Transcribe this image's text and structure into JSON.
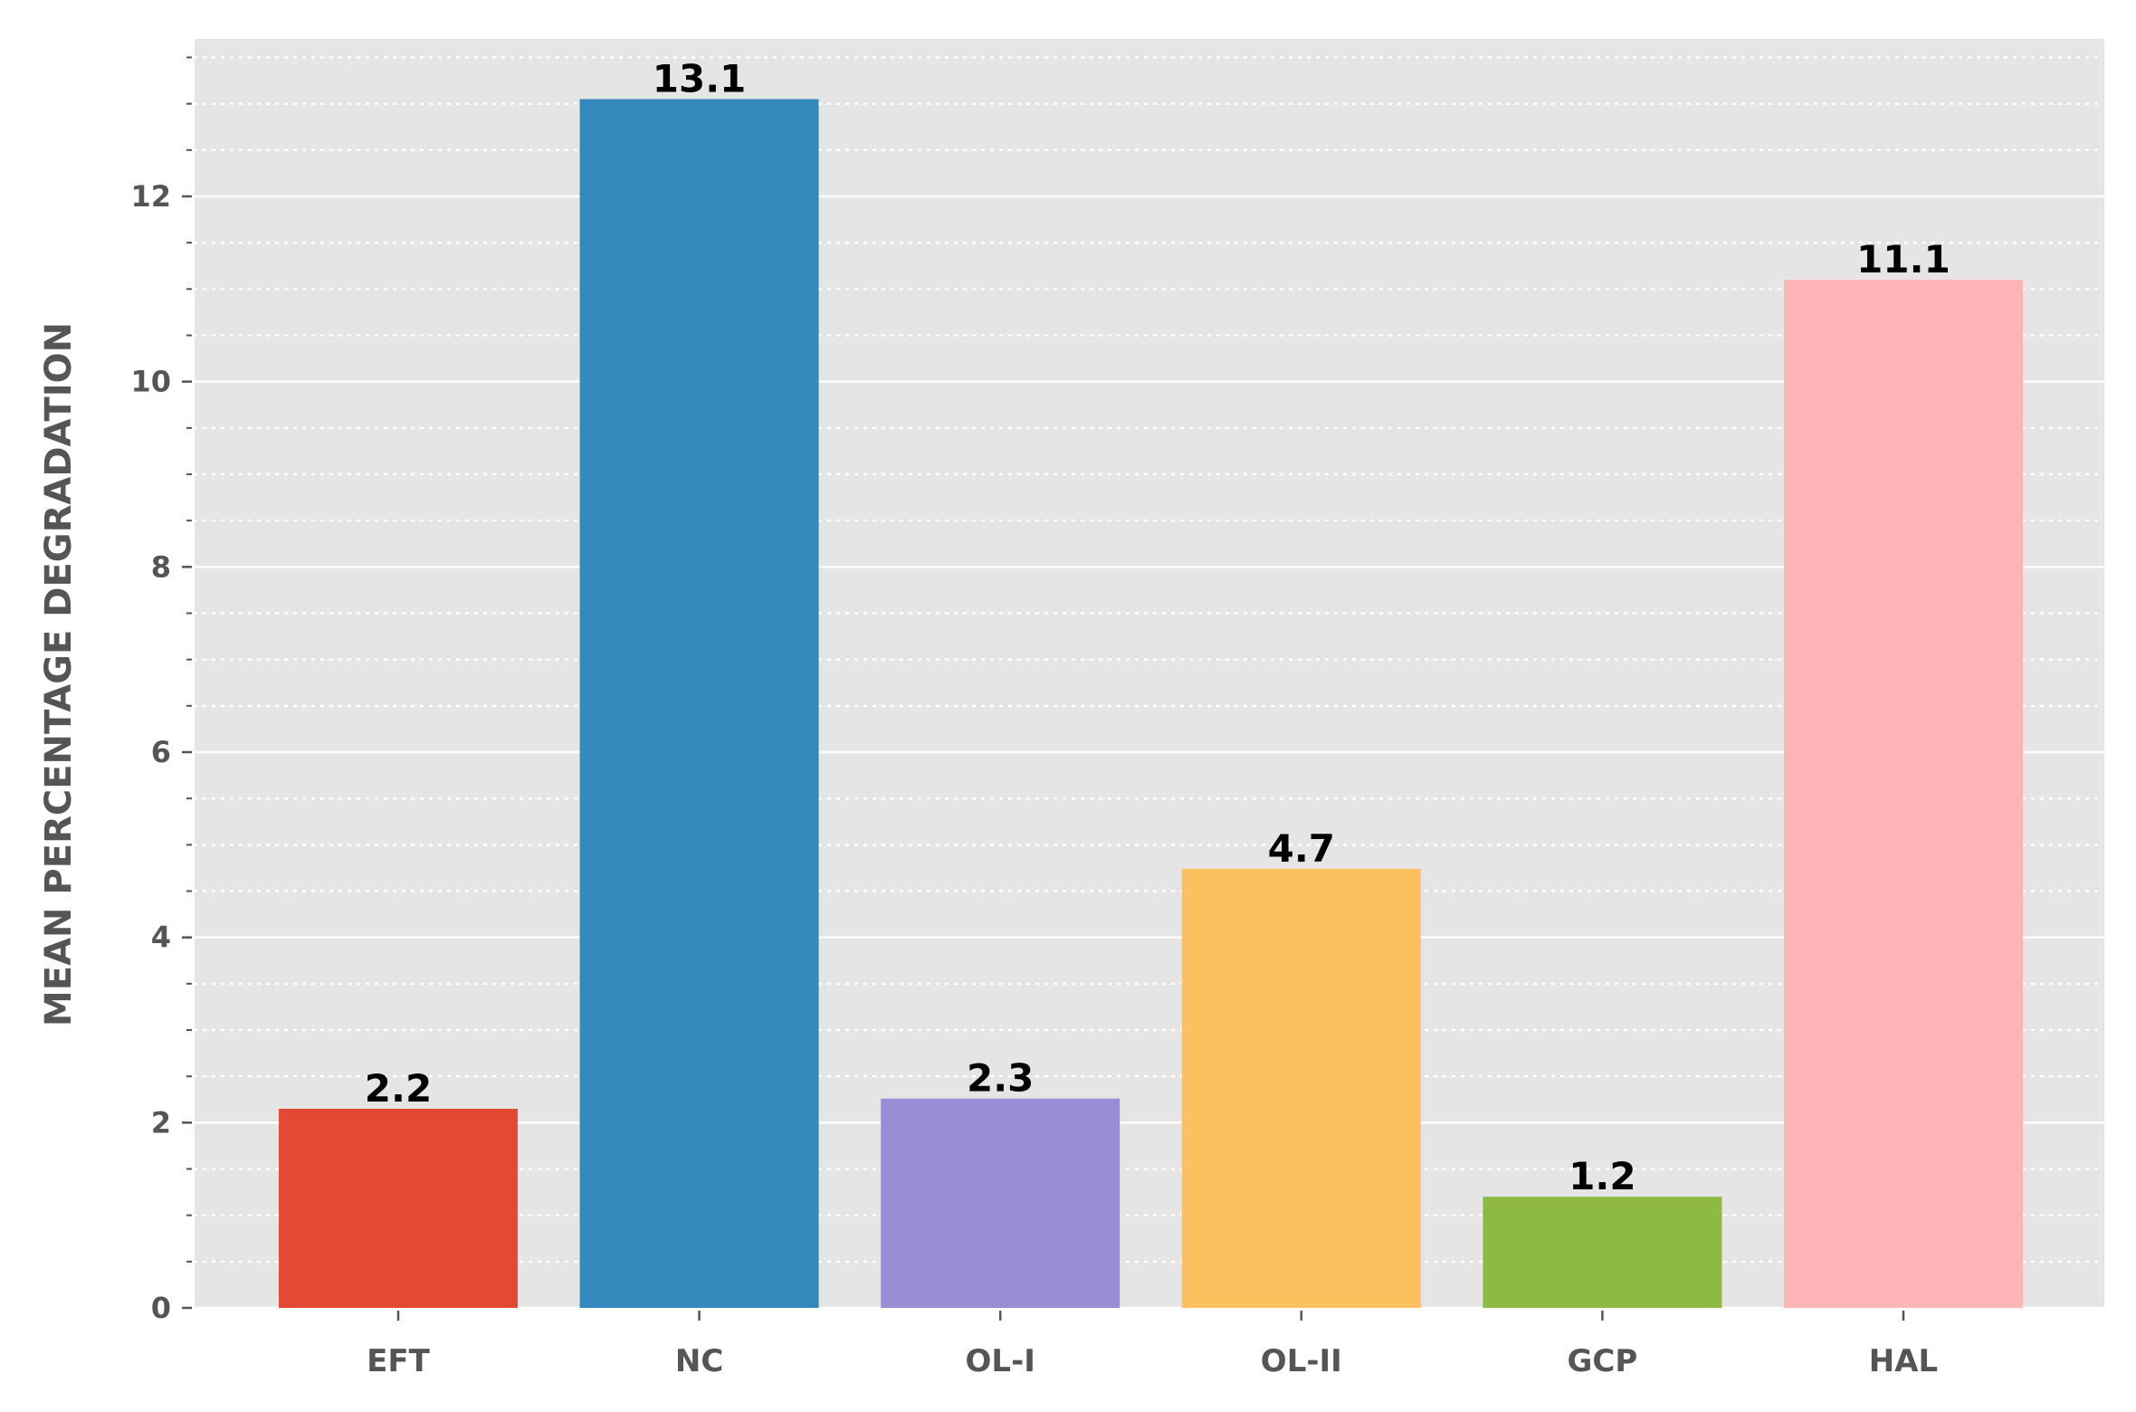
{
  "chart_data": {
    "type": "bar",
    "title": "",
    "xlabel": "",
    "ylabel": "MEAN PERCENTAGE DEGRADATION",
    "categories": [
      "EFT",
      "NC",
      "OL-I",
      "OL-II",
      "GCP",
      "HAL"
    ],
    "values": [
      2.15,
      13.05,
      2.26,
      4.74,
      1.2,
      11.1
    ],
    "value_labels": [
      "2.2",
      "13.1",
      "2.3",
      "4.7",
      "1.2",
      "11.1"
    ],
    "colors": [
      "#E24A33",
      "#348ABD",
      "#988ED5",
      "#FBC15E",
      "#8EBA42",
      "#FFB5B8"
    ],
    "ylim": [
      0,
      13.7
    ],
    "yticks": [
      0,
      2,
      4,
      6,
      8,
      10,
      12
    ],
    "ytick_labels": [
      "0",
      "2",
      "4",
      "6",
      "8",
      "10",
      "12"
    ],
    "minor_tick_step": 0.5,
    "grid": true,
    "legend": "none",
    "background": "#E5E5E5"
  }
}
